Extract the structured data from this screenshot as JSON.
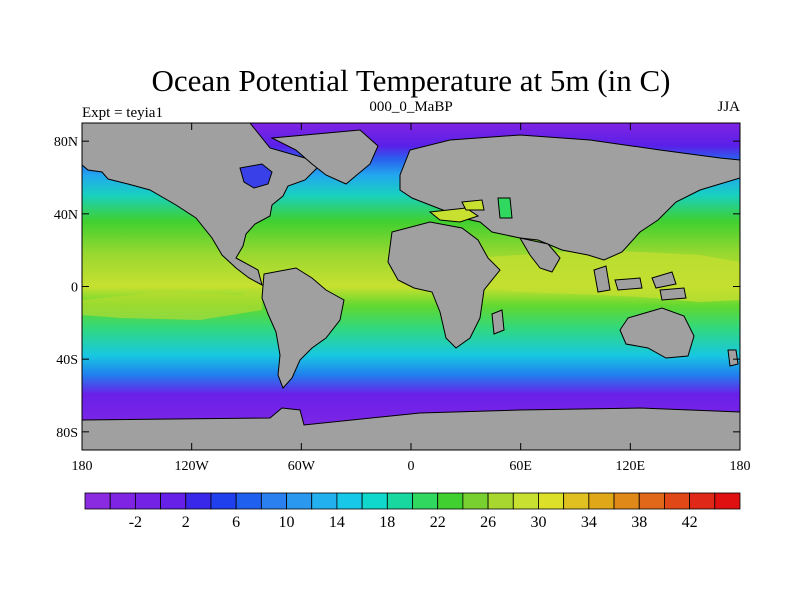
{
  "title": "Ocean Potential Temperature at 5m (in C)",
  "left_label": "Expt = teyia1",
  "center_label": "000_0_MaBP",
  "right_label": "JJA",
  "lat_ticks": [
    "80N",
    "40N",
    "0",
    "40S",
    "80S"
  ],
  "lon_ticks": [
    "180",
    "120W",
    "60W",
    "0",
    "60E",
    "120E",
    "180"
  ],
  "colors": {
    "land": "#a0a0a0",
    "coastline": "#000000",
    "frame": "#000000",
    "palette": [
      "#8a2be2",
      "#7f24e3",
      "#7422e6",
      "#6620e8",
      "#3a28ea",
      "#2040ee",
      "#2060ee",
      "#2a80ee",
      "#2a98ee",
      "#22b0ee",
      "#18c8e8",
      "#10d8cc",
      "#18d8a0",
      "#30d860",
      "#40d030",
      "#78d030",
      "#a8d830",
      "#c8e030",
      "#dce028",
      "#e0c020",
      "#e0a818",
      "#e08818",
      "#e06818",
      "#e04818",
      "#e02818",
      "#e01010"
    ]
  },
  "chart_data": {
    "type": "heatmap",
    "title": "Ocean Potential Temperature at 5m (in C)",
    "projection": "cylindrical-equidistant",
    "xlim": [
      -180,
      180
    ],
    "ylim": [
      -90,
      90
    ],
    "colorbar": {
      "min": -4,
      "max": 44,
      "step": 2,
      "labels": [
        -2,
        2,
        6,
        10,
        14,
        18,
        22,
        26,
        30,
        34,
        38,
        42
      ]
    }
  }
}
